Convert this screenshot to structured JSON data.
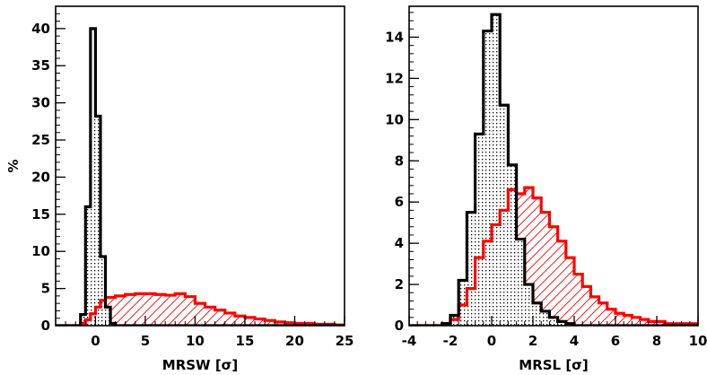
{
  "chart_data": [
    {
      "type": "histogram",
      "xlabel": "MRSW [σ]",
      "ylabel": "%",
      "xlim": [
        -4,
        25
      ],
      "ylim": [
        0,
        43
      ],
      "xticks": [
        0,
        5,
        10,
        15,
        20,
        25
      ],
      "yticks": [
        0,
        5,
        10,
        15,
        20,
        25,
        30,
        35,
        40
      ],
      "series": [
        {
          "color": "#000000",
          "fill_pattern": "dots",
          "bins": [
            {
              "x0": -4.0,
              "x1": -1.5,
              "y": 0
            },
            {
              "x0": -1.5,
              "x1": -1.0,
              "y": 1.5
            },
            {
              "x0": -1.0,
              "x1": -0.5,
              "y": 16.0
            },
            {
              "x0": -0.5,
              "x1": 0.0,
              "y": 40.0
            },
            {
              "x0": 0.0,
              "x1": 0.5,
              "y": 28.2
            },
            {
              "x0": 0.5,
              "x1": 1.0,
              "y": 9.3
            },
            {
              "x0": 1.0,
              "x1": 1.5,
              "y": 2.5
            },
            {
              "x0": 1.5,
              "x1": 2.0,
              "y": 0.3
            },
            {
              "x0": 2.0,
              "x1": 25.0,
              "y": 0
            }
          ]
        },
        {
          "color": "#ff0000",
          "fill_pattern": "diagonal-hatch",
          "bins": [
            {
              "x0": -4.0,
              "x1": -1.5,
              "y": 0
            },
            {
              "x0": -1.5,
              "x1": -1.0,
              "y": 0.3
            },
            {
              "x0": -1.0,
              "x1": -0.5,
              "y": 0.8
            },
            {
              "x0": -0.5,
              "x1": 0.0,
              "y": 1.6
            },
            {
              "x0": 0.0,
              "x1": 0.5,
              "y": 2.5
            },
            {
              "x0": 0.5,
              "x1": 1.0,
              "y": 3.4
            },
            {
              "x0": 1.0,
              "x1": 2.0,
              "y": 3.8
            },
            {
              "x0": 2.0,
              "x1": 3.0,
              "y": 4.0
            },
            {
              "x0": 3.0,
              "x1": 4.0,
              "y": 4.2
            },
            {
              "x0": 4.0,
              "x1": 6.0,
              "y": 4.3
            },
            {
              "x0": 6.0,
              "x1": 7.0,
              "y": 4.2
            },
            {
              "x0": 7.0,
              "x1": 8.0,
              "y": 4.1
            },
            {
              "x0": 8.0,
              "x1": 9.0,
              "y": 4.3
            },
            {
              "x0": 9.0,
              "x1": 10.0,
              "y": 3.9
            },
            {
              "x0": 10.0,
              "x1": 11.0,
              "y": 3.0
            },
            {
              "x0": 11.0,
              "x1": 12.0,
              "y": 2.5
            },
            {
              "x0": 12.0,
              "x1": 13.0,
              "y": 2.1
            },
            {
              "x0": 13.0,
              "x1": 14.0,
              "y": 1.7
            },
            {
              "x0": 14.0,
              "x1": 15.0,
              "y": 1.3
            },
            {
              "x0": 15.0,
              "x1": 16.0,
              "y": 1.1
            },
            {
              "x0": 16.0,
              "x1": 17.0,
              "y": 0.9
            },
            {
              "x0": 17.0,
              "x1": 18.0,
              "y": 0.7
            },
            {
              "x0": 18.0,
              "x1": 19.0,
              "y": 0.5
            },
            {
              "x0": 19.0,
              "x1": 20.0,
              "y": 0.4
            },
            {
              "x0": 20.0,
              "x1": 21.0,
              "y": 0.3
            },
            {
              "x0": 21.0,
              "x1": 22.0,
              "y": 0.3
            },
            {
              "x0": 22.0,
              "x1": 23.0,
              "y": 0.2
            },
            {
              "x0": 23.0,
              "x1": 24.0,
              "y": 0.2
            },
            {
              "x0": 24.0,
              "x1": 25.0,
              "y": 0.1
            }
          ]
        }
      ]
    },
    {
      "type": "histogram",
      "xlabel": "MRSL [σ]",
      "ylabel": "",
      "xlim": [
        -4,
        10
      ],
      "ylim": [
        0,
        15.5
      ],
      "xticks": [
        -4,
        -2,
        0,
        2,
        4,
        6,
        8,
        10
      ],
      "yticks": [
        0,
        2,
        4,
        6,
        8,
        10,
        12,
        14
      ],
      "series": [
        {
          "color": "#000000",
          "fill_pattern": "dots",
          "bins": [
            {
              "x0": -4.0,
              "x1": -2.4,
              "y": 0
            },
            {
              "x0": -2.4,
              "x1": -2.0,
              "y": 0.1
            },
            {
              "x0": -2.0,
              "x1": -1.6,
              "y": 0.5
            },
            {
              "x0": -1.6,
              "x1": -1.2,
              "y": 2.2
            },
            {
              "x0": -1.2,
              "x1": -0.8,
              "y": 5.5
            },
            {
              "x0": -0.8,
              "x1": -0.4,
              "y": 9.3
            },
            {
              "x0": -0.4,
              "x1": 0.0,
              "y": 14.3
            },
            {
              "x0": 0.0,
              "x1": 0.4,
              "y": 15.1
            },
            {
              "x0": 0.4,
              "x1": 0.8,
              "y": 10.7
            },
            {
              "x0": 0.8,
              "x1": 1.2,
              "y": 7.8
            },
            {
              "x0": 1.2,
              "x1": 1.6,
              "y": 4.2
            },
            {
              "x0": 1.6,
              "x1": 2.0,
              "y": 2.0
            },
            {
              "x0": 2.0,
              "x1": 2.4,
              "y": 1.1
            },
            {
              "x0": 2.4,
              "x1": 2.8,
              "y": 0.7
            },
            {
              "x0": 2.8,
              "x1": 3.2,
              "y": 0.4
            },
            {
              "x0": 3.2,
              "x1": 3.6,
              "y": 0.2
            },
            {
              "x0": 3.6,
              "x1": 4.0,
              "y": 0.1
            },
            {
              "x0": 4.0,
              "x1": 10.0,
              "y": 0
            }
          ]
        },
        {
          "color": "#ff0000",
          "fill_pattern": "diagonal-hatch",
          "bins": [
            {
              "x0": -4.0,
              "x1": -2.4,
              "y": 0
            },
            {
              "x0": -2.4,
              "x1": -2.0,
              "y": 0.1
            },
            {
              "x0": -2.0,
              "x1": -1.6,
              "y": 0.3
            },
            {
              "x0": -1.6,
              "x1": -1.2,
              "y": 1.0
            },
            {
              "x0": -1.2,
              "x1": -0.8,
              "y": 1.8
            },
            {
              "x0": -0.8,
              "x1": -0.4,
              "y": 3.3
            },
            {
              "x0": -0.4,
              "x1": 0.0,
              "y": 4.1
            },
            {
              "x0": 0.0,
              "x1": 0.4,
              "y": 4.9
            },
            {
              "x0": 0.4,
              "x1": 0.8,
              "y": 5.6
            },
            {
              "x0": 0.8,
              "x1": 1.2,
              "y": 6.6
            },
            {
              "x0": 1.2,
              "x1": 1.6,
              "y": 6.4
            },
            {
              "x0": 1.6,
              "x1": 2.0,
              "y": 6.7
            },
            {
              "x0": 2.0,
              "x1": 2.4,
              "y": 6.2
            },
            {
              "x0": 2.4,
              "x1": 2.8,
              "y": 5.5
            },
            {
              "x0": 2.8,
              "x1": 3.2,
              "y": 4.8
            },
            {
              "x0": 3.2,
              "x1": 3.6,
              "y": 4.1
            },
            {
              "x0": 3.6,
              "x1": 4.0,
              "y": 3.3
            },
            {
              "x0": 4.0,
              "x1": 4.4,
              "y": 2.5
            },
            {
              "x0": 4.4,
              "x1": 4.8,
              "y": 1.9
            },
            {
              "x0": 4.8,
              "x1": 5.2,
              "y": 1.4
            },
            {
              "x0": 5.2,
              "x1": 5.6,
              "y": 1.1
            },
            {
              "x0": 5.6,
              "x1": 6.0,
              "y": 0.8
            },
            {
              "x0": 6.0,
              "x1": 6.4,
              "y": 0.6
            },
            {
              "x0": 6.4,
              "x1": 6.8,
              "y": 0.5
            },
            {
              "x0": 6.8,
              "x1": 7.2,
              "y": 0.4
            },
            {
              "x0": 7.2,
              "x1": 7.6,
              "y": 0.3
            },
            {
              "x0": 7.6,
              "x1": 8.4,
              "y": 0.2
            },
            {
              "x0": 8.4,
              "x1": 10.0,
              "y": 0.1
            }
          ]
        }
      ]
    }
  ]
}
